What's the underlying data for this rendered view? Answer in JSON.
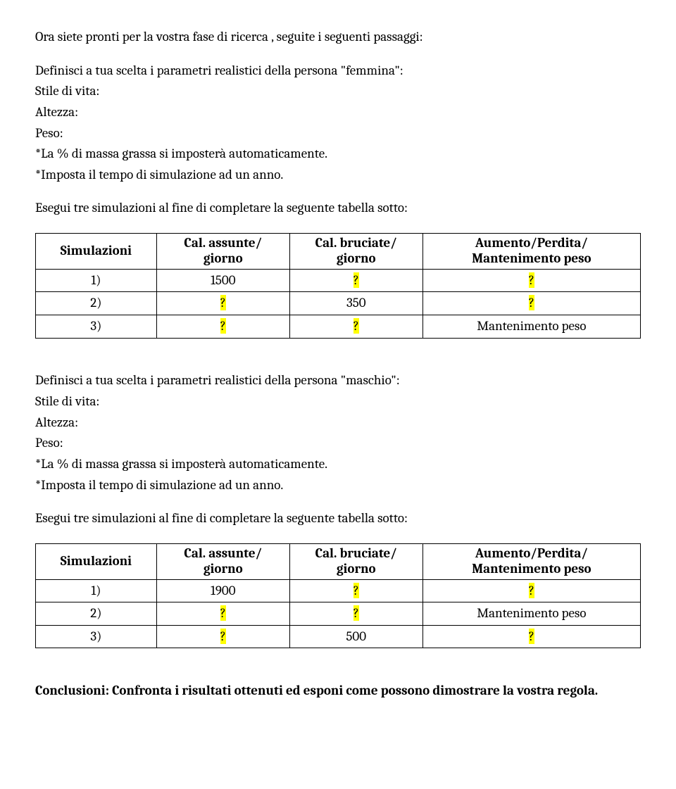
{
  "intro": "Ora siete pronti per la vostra fase  di ricerca , seguite i seguenti passaggi:",
  "section1": {
    "def": "Definisci a tua scelta i parametri realistici della persona \"femmina\":",
    "f1": "Stile di vita:",
    "f2": "Altezza:",
    "f3": "Peso:",
    "f4": "*La % di massa grassa si imposterà automaticamente.",
    "f5": "*Imposta  il tempo di simulazione ad un anno.",
    "run": "Esegui tre simulazioni al fine di completare la seguente tabella sotto:"
  },
  "table_headers": {
    "sim": "Simulazioni",
    "assunte1": "Cal. assunte/",
    "assunte2": "giorno",
    "bruciate1": "Cal. bruciate/",
    "bruciate2": "giorno",
    "out1": "Aumento/Perdita/",
    "out2": "Mantenimento peso"
  },
  "table1": {
    "r1": {
      "sim": "1)",
      "a": "1500",
      "b": "?",
      "b_hl": true,
      "c": "?",
      "c_hl": true
    },
    "r2": {
      "sim": "2)",
      "a": "?",
      "a_hl": true,
      "b": "350",
      "c": "?",
      "c_hl": true
    },
    "r3": {
      "sim": "3)",
      "a": "?",
      "a_hl": true,
      "b": "?",
      "b_hl": true,
      "c": "Mantenimento peso"
    }
  },
  "section2": {
    "def": "Definisci a tua scelta i parametri realistici della persona \"maschio\":",
    "f1": "Stile di vita:",
    "f2": "Altezza:",
    "f3": "Peso:",
    "f4": "*La % di massa grassa si imposterà automaticamente.",
    "f5": "*Imposta  il tempo di simulazione ad un anno.",
    "run": "Esegui tre simulazioni al fine di completare la seguente tabella sotto:"
  },
  "table2": {
    "r1": {
      "sim": "1)",
      "a": "1900",
      "b": "?",
      "b_hl": true,
      "c": "?",
      "c_hl": true
    },
    "r2": {
      "sim": "2)",
      "a": "?",
      "a_hl": true,
      "b": "?",
      "b_hl": true,
      "c": "Mantenimento peso"
    },
    "r3": {
      "sim": "3)",
      "a": "?",
      "a_hl": true,
      "b": "500",
      "c": "?",
      "c_hl": true
    }
  },
  "conclusion": "Conclusioni: Confronta i risultati ottenuti ed esponi come possono dimostrare la vostra regola."
}
